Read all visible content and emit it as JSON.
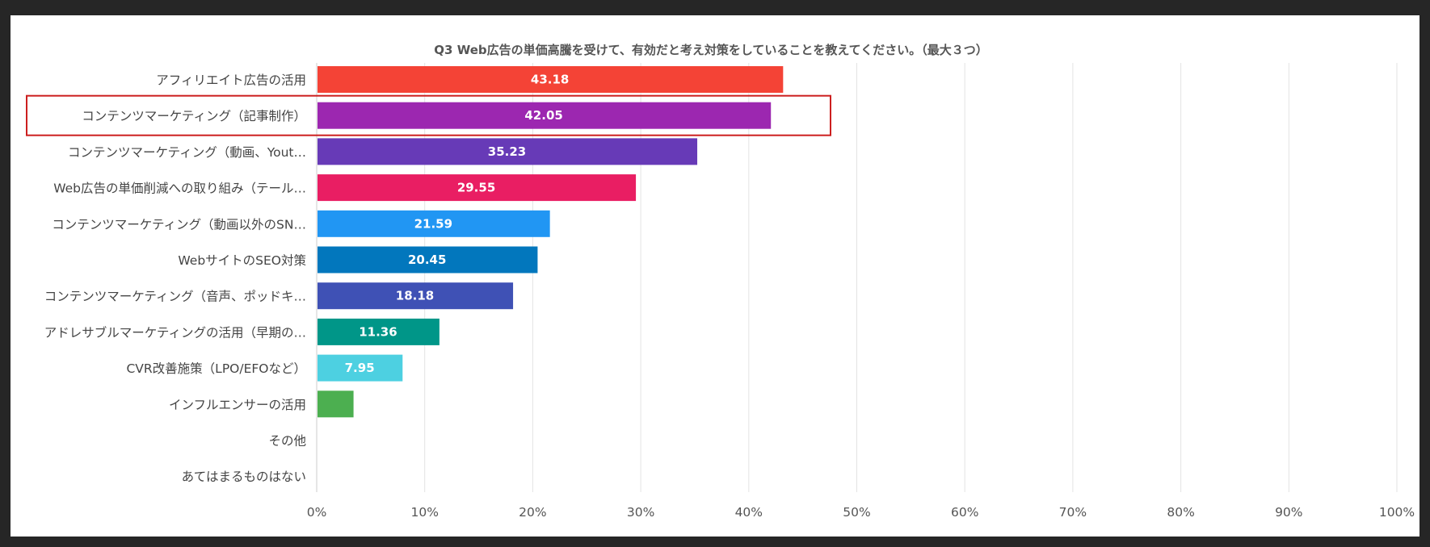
{
  "chart_data": {
    "type": "bar",
    "orientation": "horizontal",
    "title": "Q3 Web広告の単価高騰を受けて、有効だと考え対策をしていることを教えてください。（最大３つ）",
    "xlim": [
      0,
      100
    ],
    "x_ticks": [
      "0%",
      "10%",
      "20%",
      "30%",
      "40%",
      "50%",
      "60%",
      "70%",
      "80%",
      "90%",
      "100%"
    ],
    "grid": true,
    "highlighted_category": "コンテンツマーケティング（記事制作）",
    "highlight_color": "#cc1f1f",
    "categories": [
      "アフィリエイト広告の活用",
      "コンテンツマーケティング（記事制作）",
      "コンテンツマーケティング（動画、Yout…",
      "Web広告の単価削減への取り組み（テール…",
      "コンテンツマーケティング（動画以外のSN…",
      "WebサイトのSEO対策",
      "コンテンツマーケティング（音声、ポッドキ…",
      "アドレサブルマーケティングの活用（早期の…",
      "CVR改善施策（LPO/EFOなど）",
      "インフルエンサーの活用",
      "その他",
      "あてはまるものはない"
    ],
    "values": [
      43.18,
      42.05,
      35.23,
      29.55,
      21.59,
      20.45,
      18.18,
      11.36,
      7.95,
      3.41,
      0,
      0
    ],
    "value_labels": [
      "43.18",
      "42.05",
      "35.23",
      "29.55",
      "21.59",
      "20.45",
      "18.18",
      "11.36",
      "7.95",
      "",
      "",
      ""
    ],
    "colors": [
      "#f44336",
      "#9c27b0",
      "#673ab7",
      "#e91e63",
      "#2196f3",
      "#0277bd",
      "#3f51b5",
      "#009688",
      "#4dd0e1",
      "#4caf50",
      "#8bc34a",
      "#ffc107"
    ]
  }
}
